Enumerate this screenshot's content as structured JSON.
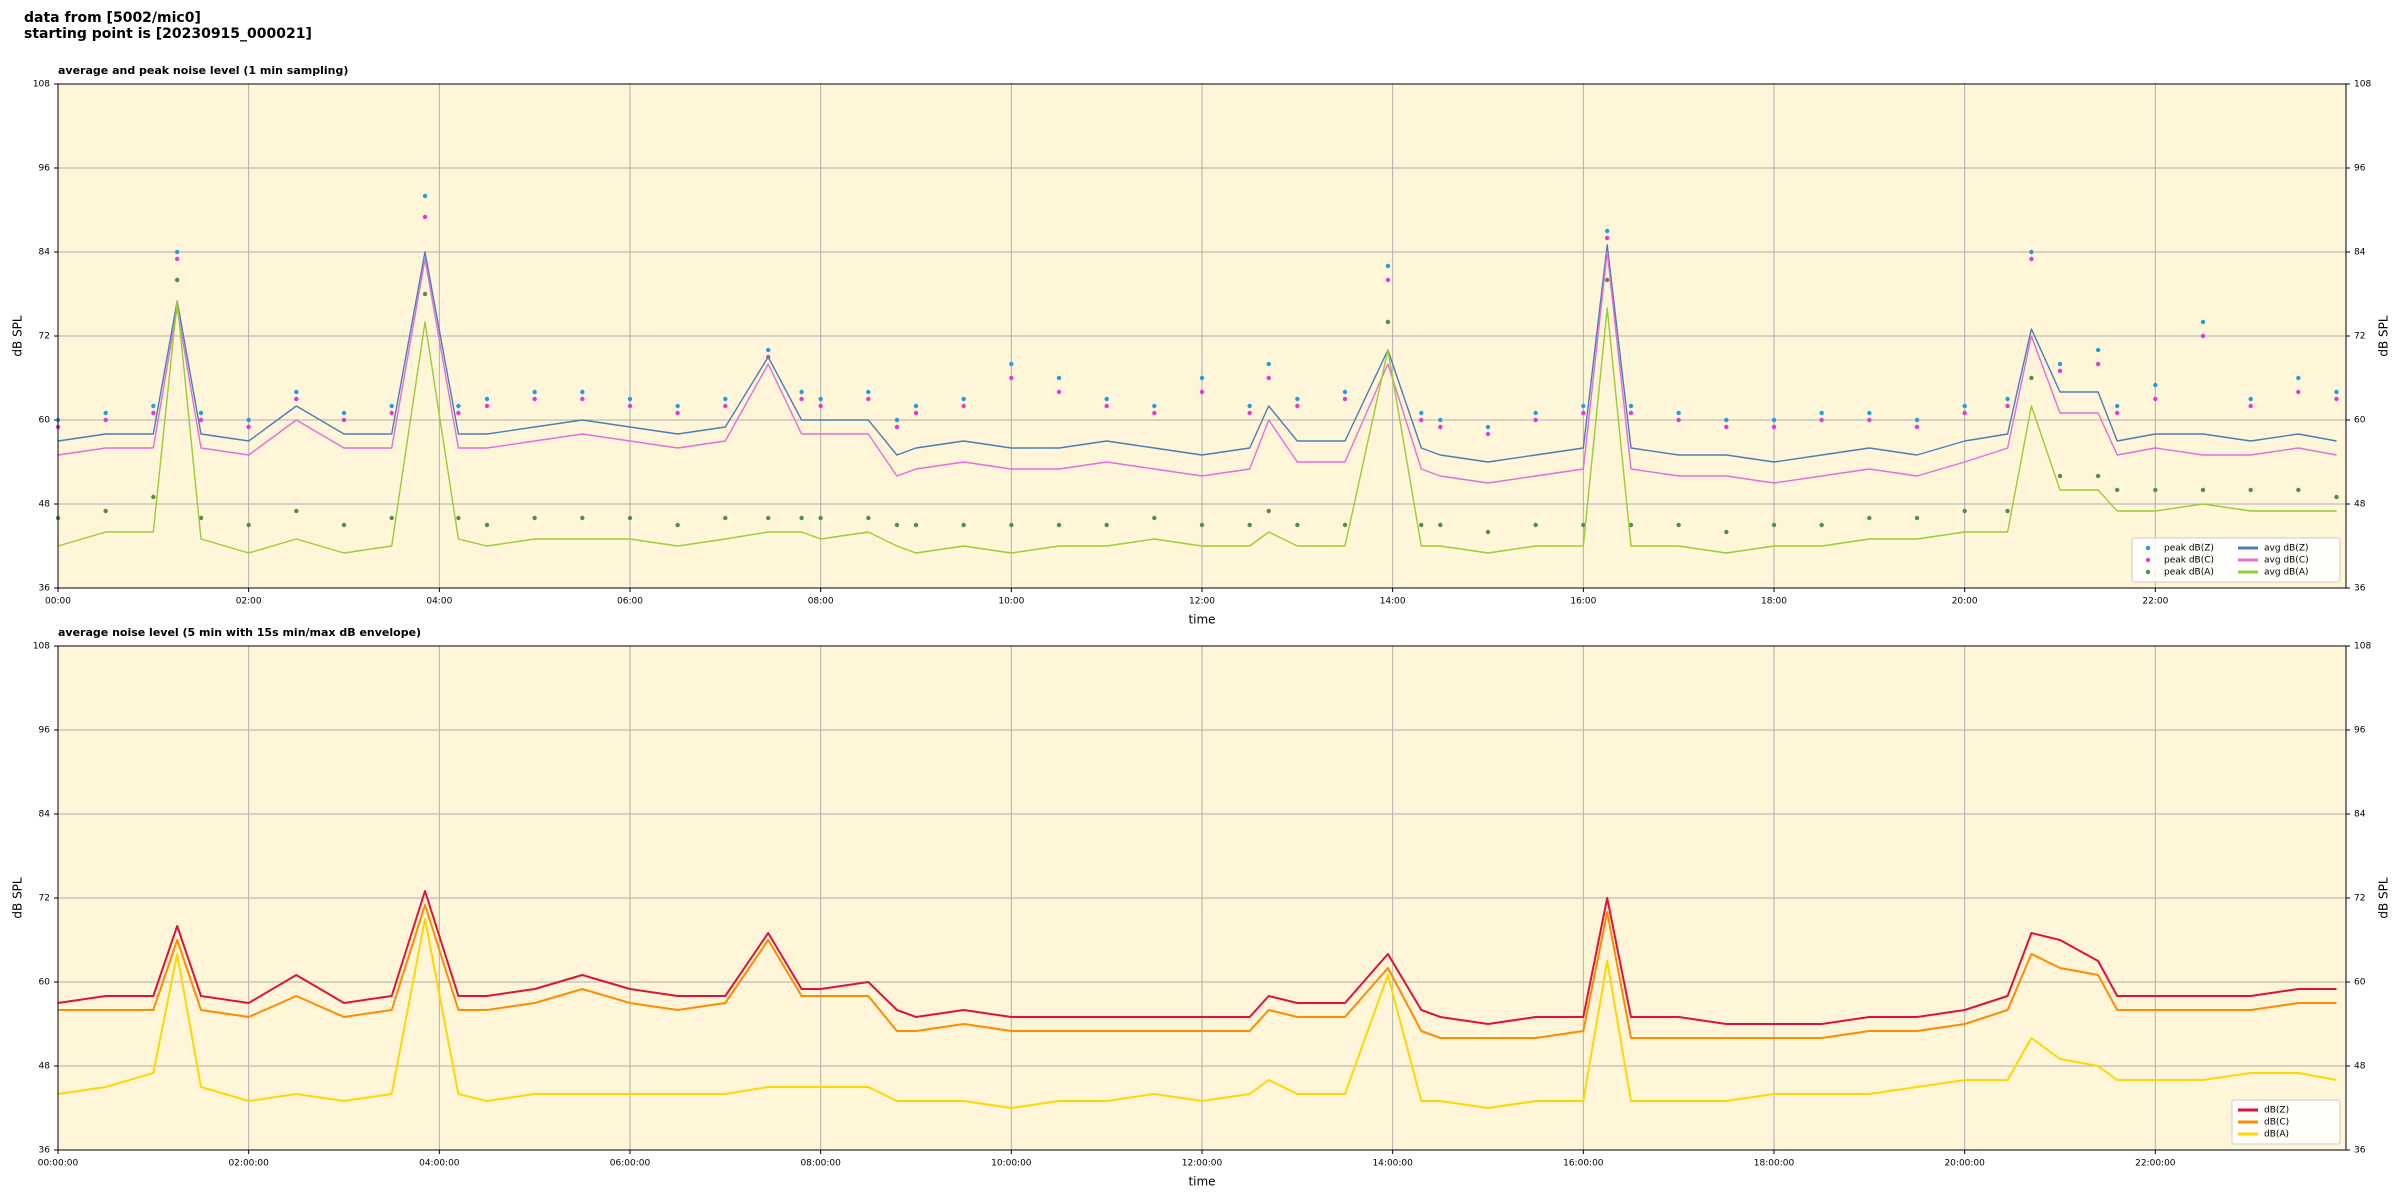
{
  "header": {
    "line1": "data from [5002/mic0]",
    "line2": "starting point is [20230915_000021]"
  },
  "chart_data": [
    {
      "type": "line",
      "title": "average and peak noise level (1 min sampling)",
      "xlabel": "time",
      "ylabel": "dB SPL",
      "background": "#fff5d9",
      "grid": true,
      "legend_loc": "lower right",
      "legend_ncol": 2,
      "xlim": [
        0,
        24
      ],
      "ylim": [
        36,
        108
      ],
      "yticks": [
        36,
        48,
        60,
        72,
        84,
        96,
        108
      ],
      "xticks": [
        {
          "value": 0,
          "label": "00:00"
        },
        {
          "value": 2,
          "label": "02:00"
        },
        {
          "value": 4,
          "label": "04:00"
        },
        {
          "value": 6,
          "label": "06:00"
        },
        {
          "value": 8,
          "label": "08:00"
        },
        {
          "value": 10,
          "label": "10:00"
        },
        {
          "value": 12,
          "label": "12:00"
        },
        {
          "value": 14,
          "label": "14:00"
        },
        {
          "value": 16,
          "label": "16:00"
        },
        {
          "value": 18,
          "label": "18:00"
        },
        {
          "value": 20,
          "label": "20:00"
        },
        {
          "value": 22,
          "label": "22:00"
        }
      ],
      "x": [
        0,
        0.5,
        1,
        1.25,
        1.5,
        2,
        2.5,
        3,
        3.5,
        3.85,
        4.2,
        4.5,
        5,
        5.5,
        6,
        6.5,
        7,
        7.45,
        7.8,
        8,
        8.5,
        8.8,
        9,
        9.5,
        10,
        10.5,
        11,
        11.5,
        12,
        12.5,
        12.7,
        13,
        13.5,
        13.95,
        14.3,
        14.5,
        15,
        15.5,
        16,
        16.25,
        16.5,
        17,
        17.5,
        18,
        18.5,
        19,
        19.5,
        20,
        20.45,
        20.7,
        21,
        21.4,
        21.6,
        22,
        22.5,
        23,
        23.5,
        23.9
      ],
      "series": [
        {
          "name": "peak dB(Z)",
          "type": "scatter",
          "color": "#1f9fe0",
          "values": [
            60,
            61,
            62,
            84,
            61,
            60,
            64,
            61,
            62,
            92,
            62,
            63,
            64,
            64,
            63,
            62,
            63,
            70,
            64,
            63,
            64,
            60,
            62,
            63,
            68,
            66,
            63,
            62,
            66,
            62,
            68,
            63,
            64,
            82,
            61,
            60,
            59,
            61,
            62,
            87,
            62,
            61,
            60,
            60,
            61,
            61,
            60,
            62,
            63,
            84,
            68,
            70,
            62,
            65,
            74,
            63,
            66,
            64
          ]
        },
        {
          "name": "peak dB(C)",
          "type": "scatter",
          "color": "#e03ad8",
          "values": [
            59,
            60,
            61,
            83,
            60,
            59,
            63,
            60,
            61,
            89,
            61,
            62,
            63,
            63,
            62,
            61,
            62,
            69,
            63,
            62,
            63,
            59,
            61,
            62,
            66,
            64,
            62,
            61,
            64,
            61,
            66,
            62,
            63,
            80,
            60,
            59,
            58,
            60,
            61,
            86,
            61,
            60,
            59,
            59,
            60,
            60,
            59,
            61,
            62,
            83,
            67,
            68,
            61,
            63,
            72,
            62,
            64,
            63
          ]
        },
        {
          "name": "peak dB(A)",
          "type": "scatter",
          "color": "#4f8f4a",
          "values": [
            46,
            47,
            49,
            80,
            46,
            45,
            47,
            45,
            46,
            78,
            46,
            45,
            46,
            46,
            46,
            45,
            46,
            46,
            46,
            46,
            46,
            45,
            45,
            45,
            45,
            45,
            45,
            46,
            45,
            45,
            47,
            45,
            45,
            74,
            45,
            45,
            44,
            45,
            45,
            80,
            45,
            45,
            44,
            45,
            45,
            46,
            46,
            47,
            47,
            66,
            52,
            52,
            50,
            50,
            50,
            50,
            50,
            49
          ]
        },
        {
          "name": "avg dB(Z)",
          "type": "line",
          "color": "#4a7fb5",
          "values": [
            57,
            58,
            58,
            77,
            58,
            57,
            62,
            58,
            58,
            84,
            58,
            58,
            59,
            60,
            59,
            58,
            59,
            69,
            60,
            60,
            60,
            55,
            56,
            57,
            56,
            56,
            57,
            56,
            55,
            56,
            62,
            57,
            57,
            70,
            56,
            55,
            54,
            55,
            56,
            85,
            56,
            55,
            55,
            54,
            55,
            56,
            55,
            57,
            58,
            73,
            64,
            64,
            57,
            58,
            58,
            57,
            58,
            57
          ]
        },
        {
          "name": "avg dB(C)",
          "type": "line",
          "color": "#e26fd6",
          "values": [
            55,
            56,
            56,
            76,
            56,
            55,
            60,
            56,
            56,
            83,
            56,
            56,
            57,
            58,
            57,
            56,
            57,
            68,
            58,
            58,
            58,
            52,
            53,
            54,
            53,
            53,
            54,
            53,
            52,
            53,
            60,
            54,
            54,
            68,
            53,
            52,
            51,
            52,
            53,
            84,
            53,
            52,
            52,
            51,
            52,
            53,
            52,
            54,
            56,
            72,
            61,
            61,
            55,
            56,
            55,
            55,
            56,
            55
          ]
        },
        {
          "name": "avg dB(A)",
          "type": "line",
          "color": "#9acd32",
          "values": [
            42,
            44,
            44,
            77,
            43,
            41,
            43,
            41,
            42,
            74,
            43,
            42,
            43,
            43,
            43,
            42,
            43,
            44,
            44,
            43,
            44,
            42,
            41,
            42,
            41,
            42,
            42,
            43,
            42,
            42,
            44,
            42,
            42,
            70,
            42,
            42,
            41,
            42,
            42,
            76,
            42,
            42,
            41,
            42,
            42,
            43,
            43,
            44,
            44,
            62,
            50,
            50,
            47,
            47,
            48,
            47,
            47,
            47
          ]
        }
      ]
    },
    {
      "type": "line",
      "title": "average noise level (5 min with 15s min/max dB envelope)",
      "xlabel": "time",
      "ylabel": "dB SPL",
      "background": "#fff5d9",
      "grid": true,
      "legend_loc": "lower right",
      "legend_ncol": 1,
      "xlim": [
        0,
        24
      ],
      "ylim": [
        36,
        108
      ],
      "yticks": [
        36,
        48,
        60,
        72,
        84,
        96,
        108
      ],
      "xticks": [
        {
          "value": 0,
          "label": "00:00:00"
        },
        {
          "value": 2,
          "label": "02:00:00"
        },
        {
          "value": 4,
          "label": "04:00:00"
        },
        {
          "value": 6,
          "label": "06:00:00"
        },
        {
          "value": 8,
          "label": "08:00:00"
        },
        {
          "value": 10,
          "label": "10:00:00"
        },
        {
          "value": 12,
          "label": "12:00:00"
        },
        {
          "value": 14,
          "label": "14:00:00"
        },
        {
          "value": 16,
          "label": "16:00:00"
        },
        {
          "value": 18,
          "label": "18:00:00"
        },
        {
          "value": 20,
          "label": "20:00:00"
        },
        {
          "value": 22,
          "label": "22:00:00"
        }
      ],
      "x": [
        0,
        0.5,
        1,
        1.25,
        1.5,
        2,
        2.5,
        3,
        3.5,
        3.85,
        4.2,
        4.5,
        5,
        5.5,
        6,
        6.5,
        7,
        7.45,
        7.8,
        8,
        8.5,
        8.8,
        9,
        9.5,
        10,
        10.5,
        11,
        11.5,
        12,
        12.5,
        12.7,
        13,
        13.5,
        13.95,
        14.3,
        14.5,
        15,
        15.5,
        16,
        16.25,
        16.5,
        17,
        17.5,
        18,
        18.5,
        19,
        19.5,
        20,
        20.45,
        20.7,
        21,
        21.4,
        21.6,
        22,
        22.5,
        23,
        23.5,
        23.9
      ],
      "series": [
        {
          "name": "dB(Z)",
          "type": "line",
          "color": "#dc143c",
          "values": [
            57,
            58,
            58,
            68,
            58,
            57,
            61,
            57,
            58,
            73,
            58,
            58,
            59,
            61,
            59,
            58,
            58,
            67,
            59,
            59,
            60,
            56,
            55,
            56,
            55,
            55,
            55,
            55,
            55,
            55,
            58,
            57,
            57,
            64,
            56,
            55,
            54,
            55,
            55,
            72,
            55,
            55,
            54,
            54,
            54,
            55,
            55,
            56,
            58,
            67,
            66,
            63,
            58,
            58,
            58,
            58,
            59,
            59
          ]
        },
        {
          "name": "dB(C)",
          "type": "line",
          "color": "#ff8c00",
          "values": [
            56,
            56,
            56,
            66,
            56,
            55,
            58,
            55,
            56,
            71,
            56,
            56,
            57,
            59,
            57,
            56,
            57,
            66,
            58,
            58,
            58,
            53,
            53,
            54,
            53,
            53,
            53,
            53,
            53,
            53,
            56,
            55,
            55,
            62,
            53,
            52,
            52,
            52,
            53,
            70,
            52,
            52,
            52,
            52,
            52,
            53,
            53,
            54,
            56,
            64,
            62,
            61,
            56,
            56,
            56,
            56,
            57,
            57
          ]
        },
        {
          "name": "dB(A)",
          "type": "line",
          "color": "#ffd700",
          "values": [
            44,
            45,
            47,
            64,
            45,
            43,
            44,
            43,
            44,
            69,
            44,
            43,
            44,
            44,
            44,
            44,
            44,
            45,
            45,
            45,
            45,
            43,
            43,
            43,
            42,
            43,
            43,
            44,
            43,
            44,
            46,
            44,
            44,
            61,
            43,
            43,
            42,
            43,
            43,
            63,
            43,
            43,
            43,
            44,
            44,
            44,
            45,
            46,
            46,
            52,
            49,
            48,
            46,
            46,
            46,
            47,
            47,
            46
          ]
        }
      ]
    }
  ]
}
